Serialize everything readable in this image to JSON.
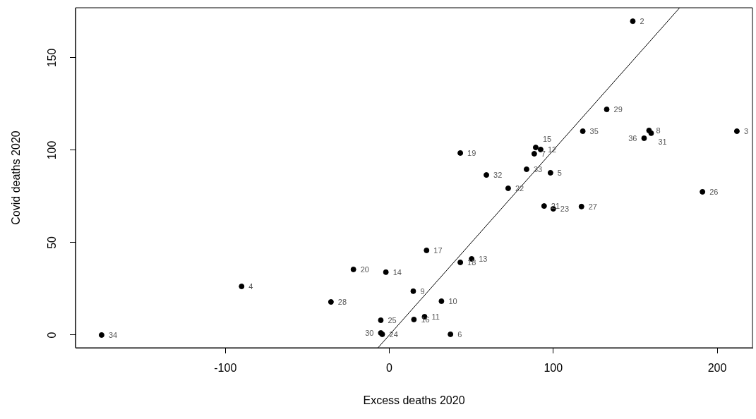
{
  "chart_data": {
    "type": "scatter",
    "xlabel": "Excess deaths 2020",
    "ylabel": "Covid deaths 2020",
    "xlim": [
      -191.4,
      221.5
    ],
    "ylim": [
      -6.9,
      177.1
    ],
    "xticks": [
      -100,
      0,
      100,
      200
    ],
    "yticks": [
      0,
      50,
      100,
      150
    ],
    "grid": false,
    "legend": false,
    "series": [
      {
        "marker": "circle",
        "color": "#000000",
        "x": [
          148.5,
          212.0,
          -90.1,
          98.3,
          37.3,
          88.4,
          158.4,
          14.6,
          31.8,
          21.5,
          92.3,
          50.2,
          -2.1,
          89.3,
          15.0,
          22.7,
          43.3,
          43.3,
          -21.9,
          94.4,
          72.5,
          100.0,
          -4.3,
          -5.2,
          191.0,
          117.2,
          -35.6,
          132.6,
          -5.2,
          159.7,
          59.2,
          83.7,
          -175.5,
          118.0,
          155.4
        ],
        "values": [
          169.8,
          110.3,
          26.3,
          87.8,
          0.4,
          98.1,
          110.7,
          23.7,
          18.3,
          9.9,
          100.4,
          41.2,
          34.0,
          101.5,
          8.4,
          45.8,
          39.3,
          98.5,
          35.5,
          69.8,
          79.4,
          68.3,
          0.4,
          8.0,
          77.5,
          69.5,
          17.9,
          122.1,
          1.1,
          109.2,
          86.6,
          89.7,
          0,
          110.3,
          106.5
        ]
      },
      {
        "type": "line",
        "marker": "none",
        "color": "#000000",
        "x": [
          -6.9,
          177.0
        ],
        "values": [
          -6.9,
          177.0
        ]
      }
    ],
    "annotations": [
      {
        "text": "2",
        "x": 148.5,
        "y": 169.8
      },
      {
        "text": "3",
        "x": 212.0,
        "y": 110.3
      },
      {
        "text": "4",
        "x": -90.1,
        "y": 26.3
      },
      {
        "text": "5",
        "x": 98.3,
        "y": 87.8
      },
      {
        "text": "6",
        "x": 37.3,
        "y": 0.4
      },
      {
        "text": "7",
        "x": 88.4,
        "y": 98.1
      },
      {
        "text": "8",
        "x": 158.4,
        "y": 110.7
      },
      {
        "text": "9",
        "x": 14.6,
        "y": 23.7
      },
      {
        "text": "10",
        "x": 31.8,
        "y": 18.3
      },
      {
        "text": "11",
        "x": 21.5,
        "y": 9.9
      },
      {
        "text": "12",
        "x": 92.3,
        "y": 100.4
      },
      {
        "text": "13",
        "x": 50.2,
        "y": 41.2
      },
      {
        "text": "14",
        "x": -2.1,
        "y": 34.0
      },
      {
        "text": "15",
        "x": 89.3,
        "y": 101.5
      },
      {
        "text": "16",
        "x": 15.0,
        "y": 8.4
      },
      {
        "text": "17",
        "x": 22.7,
        "y": 45.8
      },
      {
        "text": "18",
        "x": 43.3,
        "y": 39.3
      },
      {
        "text": "19",
        "x": 43.3,
        "y": 98.5
      },
      {
        "text": "20",
        "x": -21.9,
        "y": 35.5
      },
      {
        "text": "21",
        "x": 94.4,
        "y": 69.8
      },
      {
        "text": "22",
        "x": 72.5,
        "y": 79.4
      },
      {
        "text": "23",
        "x": 100.0,
        "y": 68.3
      },
      {
        "text": "24",
        "x": -4.3,
        "y": 0.4
      },
      {
        "text": "25",
        "x": -5.2,
        "y": 8.0
      },
      {
        "text": "26",
        "x": 191.0,
        "y": 77.5
      },
      {
        "text": "27",
        "x": 117.2,
        "y": 69.5
      },
      {
        "text": "28",
        "x": -35.6,
        "y": 17.9
      },
      {
        "text": "29",
        "x": 132.6,
        "y": 122.1
      },
      {
        "text": "30",
        "x": -5.2,
        "y": 1.1
      },
      {
        "text": "31",
        "x": 159.7,
        "y": 109.2
      },
      {
        "text": "32",
        "x": 59.2,
        "y": 86.6
      },
      {
        "text": "33",
        "x": 83.7,
        "y": 89.7
      },
      {
        "text": "34",
        "x": -175.5,
        "y": 0
      },
      {
        "text": "35",
        "x": 118.0,
        "y": 110.3
      },
      {
        "text": "36",
        "x": 155.4,
        "y": 106.5
      }
    ]
  }
}
